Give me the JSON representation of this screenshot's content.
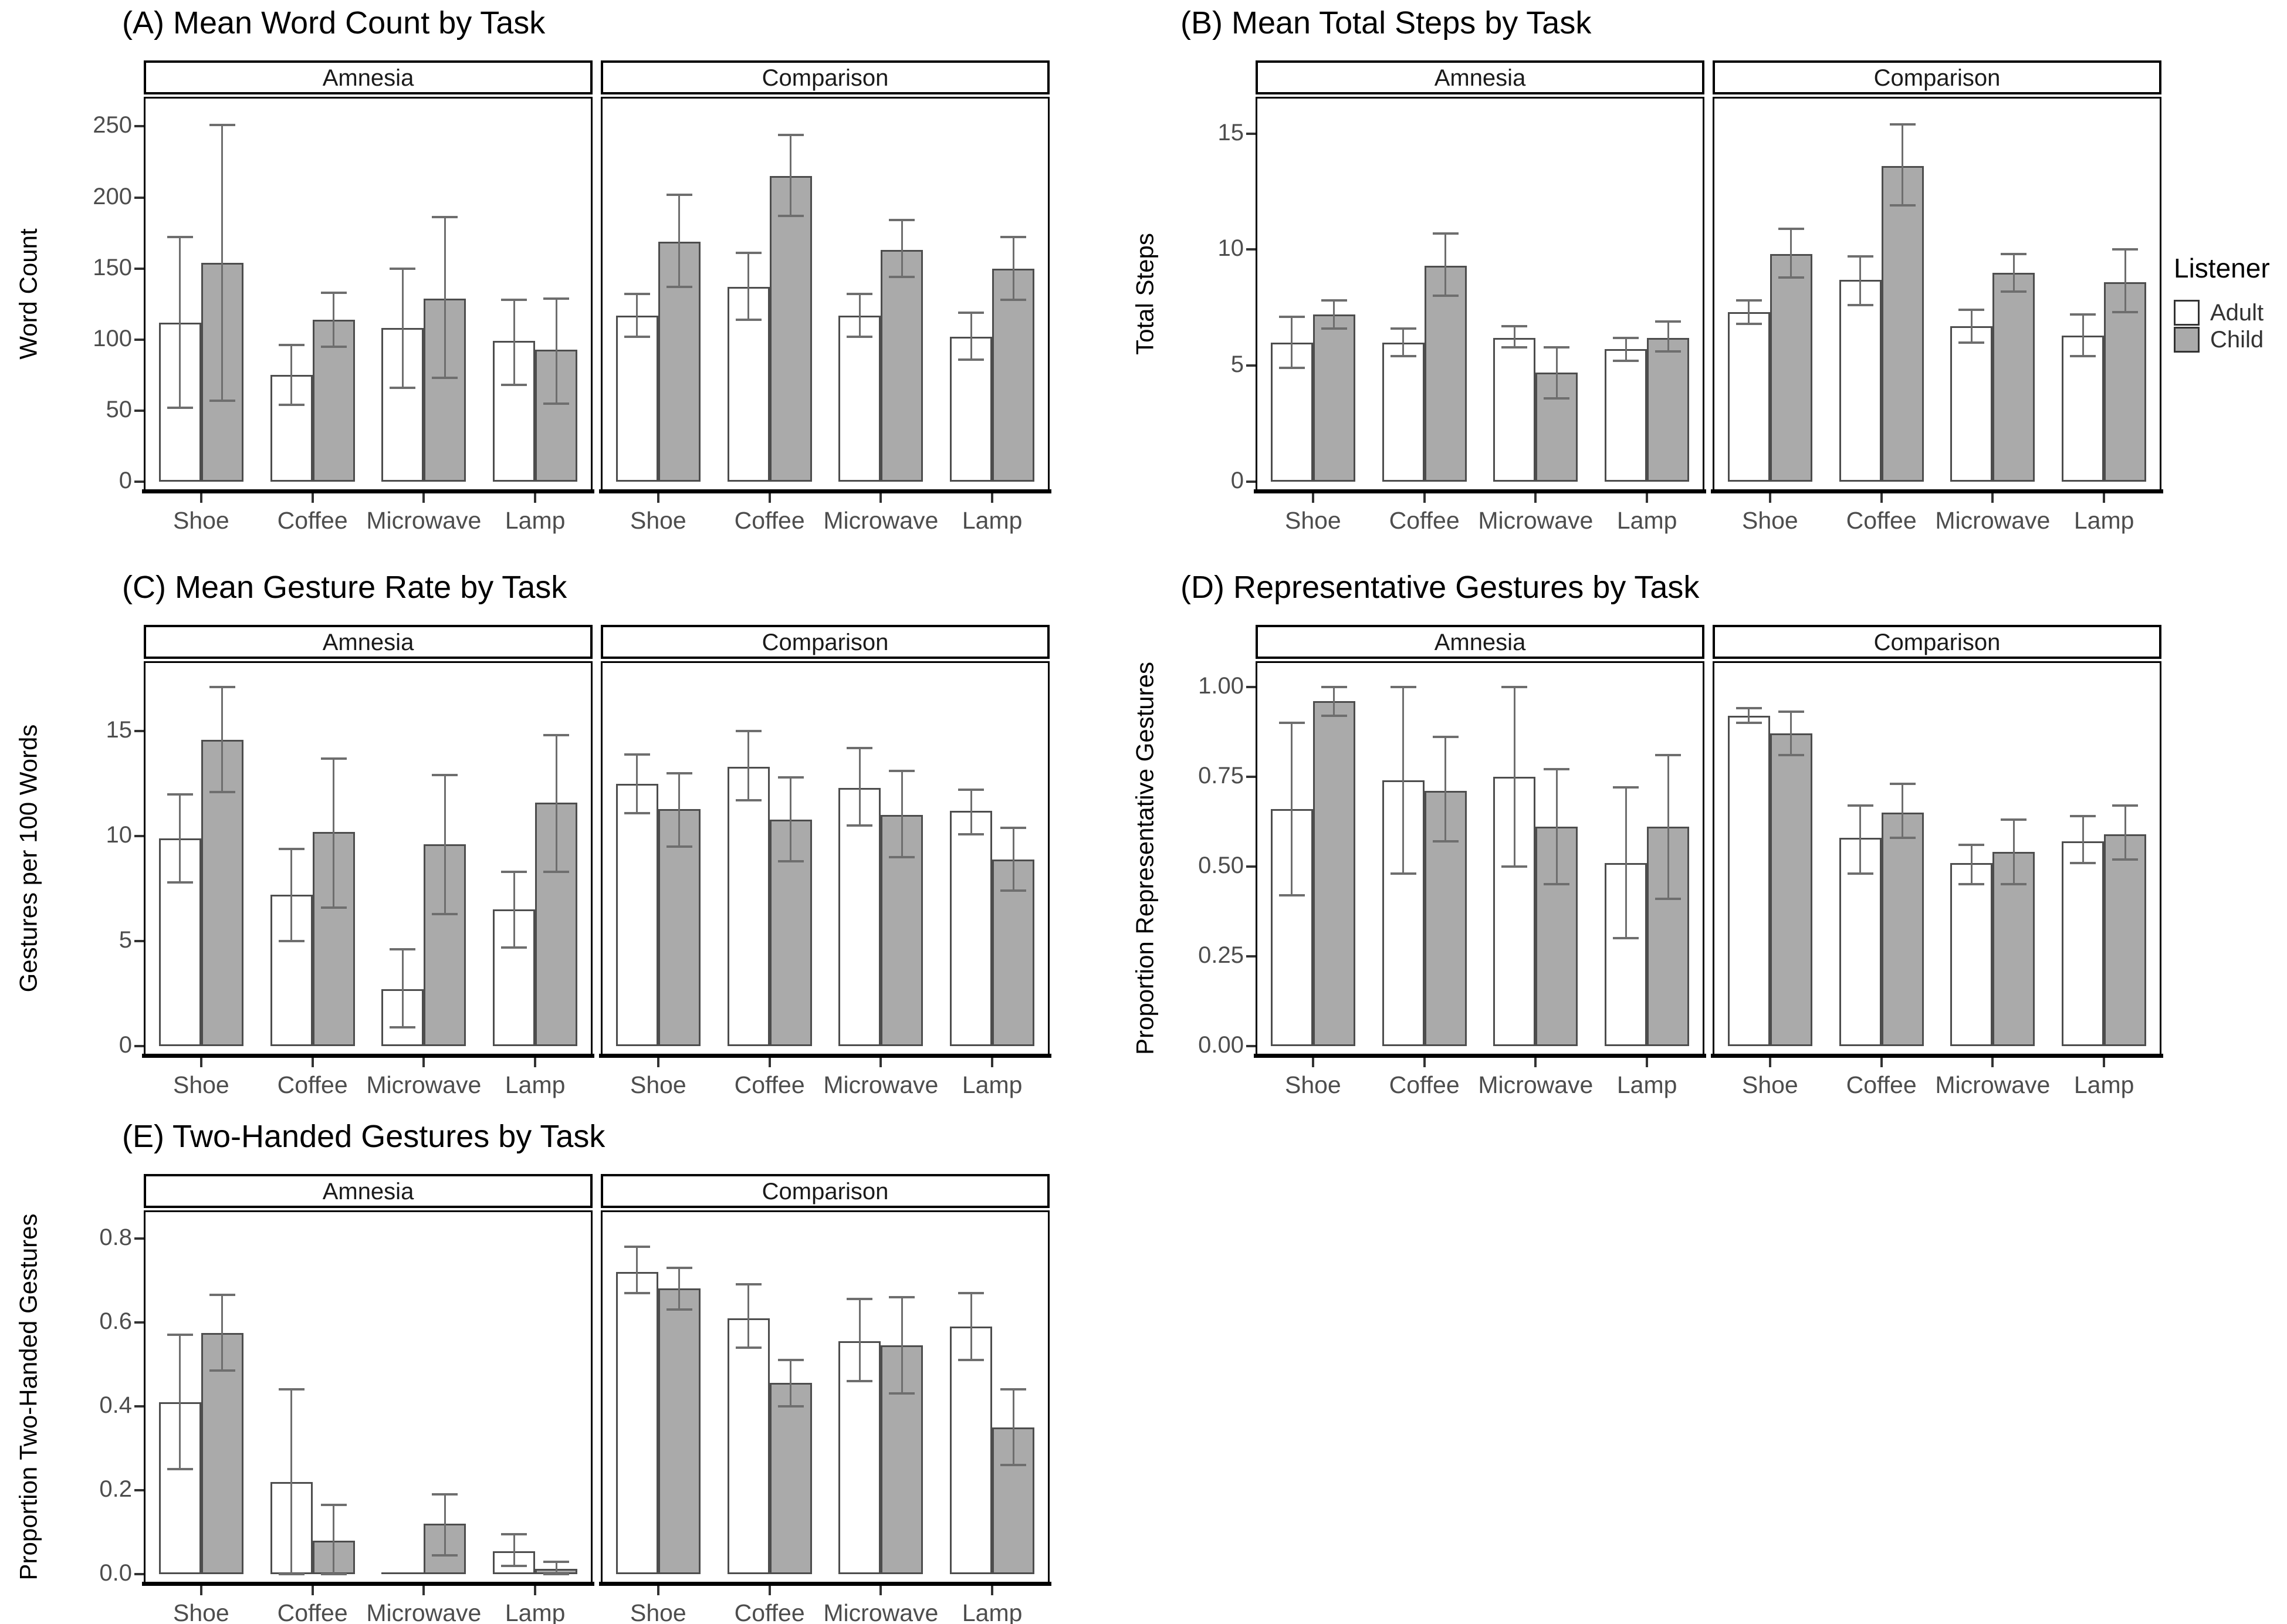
{
  "legend": {
    "title": "Listener",
    "items": [
      "Adult",
      "Child"
    ],
    "position": "right"
  },
  "colors": {
    "adult_fill": "#ffffff",
    "child_fill": "#aaaaaa",
    "bar_stroke": "#4d4d4d",
    "error_bar": "#6e6e6e",
    "axis": "#000000",
    "tick_text": "#4d4d4d"
  },
  "chart_data": [
    {
      "id": "A",
      "type": "bar",
      "title": "(A) Mean Word Count by Task",
      "ylabel": "Word Count",
      "ytick_labels": [
        "0",
        "50",
        "100",
        "150",
        "200",
        "250"
      ],
      "ylim": [
        0,
        263
      ],
      "grid": false,
      "categories": [
        "Shoe",
        "Coffee",
        "Microwave",
        "Lamp"
      ],
      "facets": [
        {
          "label": "Amnesia",
          "series": [
            {
              "name": "Adult",
              "values": [
                112,
                75,
                108,
                99
              ],
              "err_low": [
                52,
                54,
                66,
                68
              ],
              "err_high": [
                172,
                96,
                150,
                128
              ]
            },
            {
              "name": "Child",
              "values": [
                154,
                114,
                129,
                93
              ],
              "err_low": [
                57,
                95,
                73,
                55
              ],
              "err_high": [
                251,
                133,
                186,
                129
              ]
            }
          ]
        },
        {
          "label": "Comparison",
          "series": [
            {
              "name": "Adult",
              "values": [
                117,
                137,
                117,
                102
              ],
              "err_low": [
                102,
                114,
                102,
                86
              ],
              "err_high": [
                132,
                161,
                132,
                119
              ]
            },
            {
              "name": "Child",
              "values": [
                169,
                215,
                163,
                150
              ],
              "err_low": [
                137,
                187,
                144,
                128
              ],
              "err_high": [
                202,
                244,
                184,
                172
              ]
            }
          ]
        }
      ]
    },
    {
      "id": "B",
      "type": "bar",
      "title": "(B) Mean Total Steps by Task",
      "ylabel": "Total Steps",
      "ytick_labels": [
        "0",
        "5",
        "10",
        "15"
      ],
      "ylim": [
        0,
        16.1
      ],
      "grid": false,
      "categories": [
        "Shoe",
        "Coffee",
        "Microwave",
        "Lamp"
      ],
      "facets": [
        {
          "label": "Amnesia",
          "series": [
            {
              "name": "Adult",
              "values": [
                6.0,
                6.0,
                6.2,
                5.7
              ],
              "err_low": [
                4.9,
                5.4,
                5.8,
                5.2
              ],
              "err_high": [
                7.1,
                6.6,
                6.7,
                6.2
              ]
            },
            {
              "name": "Child",
              "values": [
                7.2,
                9.3,
                4.7,
                6.2
              ],
              "err_low": [
                6.6,
                8.0,
                3.6,
                5.6
              ],
              "err_high": [
                7.8,
                10.7,
                5.8,
                6.9
              ]
            }
          ]
        },
        {
          "label": "Comparison",
          "series": [
            {
              "name": "Adult",
              "values": [
                7.3,
                8.7,
                6.7,
                6.3
              ],
              "err_low": [
                6.8,
                7.6,
                6.0,
                5.4
              ],
              "err_high": [
                7.8,
                9.7,
                7.4,
                7.2
              ]
            },
            {
              "name": "Child",
              "values": [
                9.8,
                13.6,
                9.0,
                8.6
              ],
              "err_low": [
                8.8,
                11.9,
                8.2,
                7.3
              ],
              "err_high": [
                10.9,
                15.4,
                9.8,
                10.0
              ]
            }
          ]
        }
      ]
    },
    {
      "id": "C",
      "type": "bar",
      "title": "(C) Mean Gesture Rate by Task",
      "ylabel": "Gestures per 100 Words",
      "ytick_labels": [
        "0",
        "5",
        "10",
        "15"
      ],
      "ylim": [
        0,
        17.8
      ],
      "grid": false,
      "categories": [
        "Shoe",
        "Coffee",
        "Microwave",
        "Lamp"
      ],
      "facets": [
        {
          "label": "Amnesia",
          "series": [
            {
              "name": "Adult",
              "values": [
                9.9,
                7.2,
                2.7,
                6.5
              ],
              "err_low": [
                7.8,
                5.0,
                0.9,
                4.7
              ],
              "err_high": [
                12.0,
                9.4,
                4.6,
                8.3
              ]
            },
            {
              "name": "Child",
              "values": [
                14.6,
                10.2,
                9.6,
                11.6
              ],
              "err_low": [
                12.1,
                6.6,
                6.3,
                8.3
              ],
              "err_high": [
                17.1,
                13.7,
                12.9,
                14.8
              ]
            }
          ]
        },
        {
          "label": "Comparison",
          "series": [
            {
              "name": "Adult",
              "values": [
                12.5,
                13.3,
                12.3,
                11.2
              ],
              "err_low": [
                11.1,
                11.7,
                10.5,
                10.1
              ],
              "err_high": [
                13.9,
                15.0,
                14.2,
                12.2
              ]
            },
            {
              "name": "Child",
              "values": [
                11.3,
                10.8,
                11.0,
                8.9
              ],
              "err_low": [
                9.5,
                8.8,
                9.0,
                7.4
              ],
              "err_high": [
                13.0,
                12.8,
                13.1,
                10.4
              ]
            }
          ]
        }
      ]
    },
    {
      "id": "D",
      "type": "bar",
      "title": "(D) Representative Gestures by Task",
      "ylabel": "Proportion Representative Gestures",
      "ytick_labels": [
        "0.00",
        "0.25",
        "0.50",
        "0.75",
        "1.00"
      ],
      "ylim": [
        0,
        1.04
      ],
      "grid": false,
      "categories": [
        "Shoe",
        "Coffee",
        "Microwave",
        "Lamp"
      ],
      "facets": [
        {
          "label": "Amnesia",
          "series": [
            {
              "name": "Adult",
              "values": [
                0.66,
                0.74,
                0.75,
                0.51
              ],
              "err_low": [
                0.42,
                0.48,
                0.5,
                0.3
              ],
              "err_high": [
                0.9,
                1.0,
                1.0,
                0.72
              ]
            },
            {
              "name": "Child",
              "values": [
                0.96,
                0.71,
                0.61,
                0.61
              ],
              "err_low": [
                0.92,
                0.57,
                0.45,
                0.41
              ],
              "err_high": [
                1.0,
                0.86,
                0.77,
                0.81
              ]
            }
          ]
        },
        {
          "label": "Comparison",
          "series": [
            {
              "name": "Adult",
              "values": [
                0.92,
                0.58,
                0.51,
                0.57
              ],
              "err_low": [
                0.9,
                0.48,
                0.45,
                0.51
              ],
              "err_high": [
                0.94,
                0.67,
                0.56,
                0.64
              ]
            },
            {
              "name": "Child",
              "values": [
                0.87,
                0.65,
                0.54,
                0.59
              ],
              "err_low": [
                0.81,
                0.58,
                0.45,
                0.52
              ],
              "err_high": [
                0.93,
                0.73,
                0.63,
                0.67
              ]
            }
          ]
        }
      ]
    },
    {
      "id": "E",
      "type": "bar",
      "title": "(E) Two-Handed Gestures by Task",
      "ylabel": "Proportion Two-Handed Gestures",
      "ytick_labels": [
        "0.0",
        "0.2",
        "0.4",
        "0.6",
        "0.8"
      ],
      "ylim": [
        0,
        0.84
      ],
      "grid": false,
      "categories": [
        "Shoe",
        "Coffee",
        "Microwave",
        "Lamp"
      ],
      "facets": [
        {
          "label": "Amnesia",
          "series": [
            {
              "name": "Adult",
              "values": [
                0.41,
                0.22,
                0,
                0.055
              ],
              "err_low": [
                0.25,
                0,
                null,
                0.02
              ],
              "err_high": [
                0.57,
                0.44,
                null,
                0.095
              ]
            },
            {
              "name": "Child",
              "values": [
                0.575,
                0.08,
                0.12,
                0.013
              ],
              "err_low": [
                0.485,
                0,
                0.045,
                0
              ],
              "err_high": [
                0.665,
                0.165,
                0.19,
                0.03
              ]
            }
          ]
        },
        {
          "label": "Comparison",
          "series": [
            {
              "name": "Adult",
              "values": [
                0.72,
                0.61,
                0.555,
                0.59
              ],
              "err_low": [
                0.67,
                0.54,
                0.46,
                0.51
              ],
              "err_high": [
                0.78,
                0.69,
                0.655,
                0.67
              ]
            },
            {
              "name": "Child",
              "values": [
                0.68,
                0.455,
                0.545,
                0.35
              ],
              "err_low": [
                0.63,
                0.4,
                0.43,
                0.26
              ],
              "err_high": [
                0.73,
                0.51,
                0.66,
                0.44
              ]
            }
          ]
        }
      ]
    }
  ]
}
